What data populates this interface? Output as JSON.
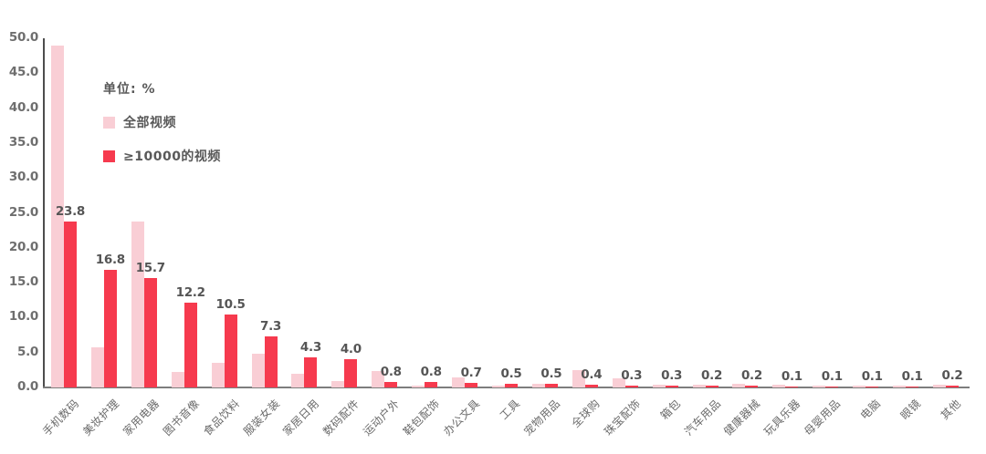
{
  "chart": {
    "unit_label": "单位: %"
  },
  "chart_data": {
    "type": "bar",
    "title": "",
    "subtitle": "",
    "unit": "%",
    "grid": false,
    "legend_position": "top-left-inside",
    "categories": [
      "手机数码",
      "美妆护理",
      "家用电器",
      "图书音像",
      "食品饮料",
      "服装女装",
      "家居日用",
      "数码配件",
      "运动户外",
      "鞋包配饰",
      "办公文具",
      "工具",
      "宠物用品",
      "全球购",
      "珠宝配饰",
      "箱包",
      "汽车用品",
      "健康器械",
      "玩具乐器",
      "母婴用品",
      "电脑",
      "眼镜",
      "其他"
    ],
    "series": [
      {
        "name": "全部视频",
        "color": "#F9CED5",
        "data_labels": false,
        "values": [
          49.0,
          5.8,
          23.8,
          2.2,
          3.5,
          4.8,
          1.9,
          0.9,
          2.3,
          0.3,
          1.4,
          0.3,
          0.5,
          2.5,
          1.3,
          0.4,
          0.4,
          0.5,
          0.4,
          0.2,
          0.3,
          0.3,
          0.4
        ]
      },
      {
        "name": "≥10000的视频",
        "color": "#F63A4E",
        "data_labels": true,
        "values": [
          23.8,
          16.8,
          15.7,
          12.2,
          10.5,
          7.3,
          4.3,
          4.0,
          0.8,
          0.8,
          0.7,
          0.5,
          0.5,
          0.4,
          0.3,
          0.3,
          0.2,
          0.2,
          0.1,
          0.1,
          0.1,
          0.1,
          0.2
        ]
      }
    ],
    "y_axis": {
      "min": 0,
      "max": 50,
      "step": 5,
      "tick_labels": [
        "0.0",
        "5.0",
        "10.0",
        "15.0",
        "20.0",
        "25.0",
        "30.0",
        "35.0",
        "40.0",
        "45.0",
        "50.0"
      ]
    }
  }
}
